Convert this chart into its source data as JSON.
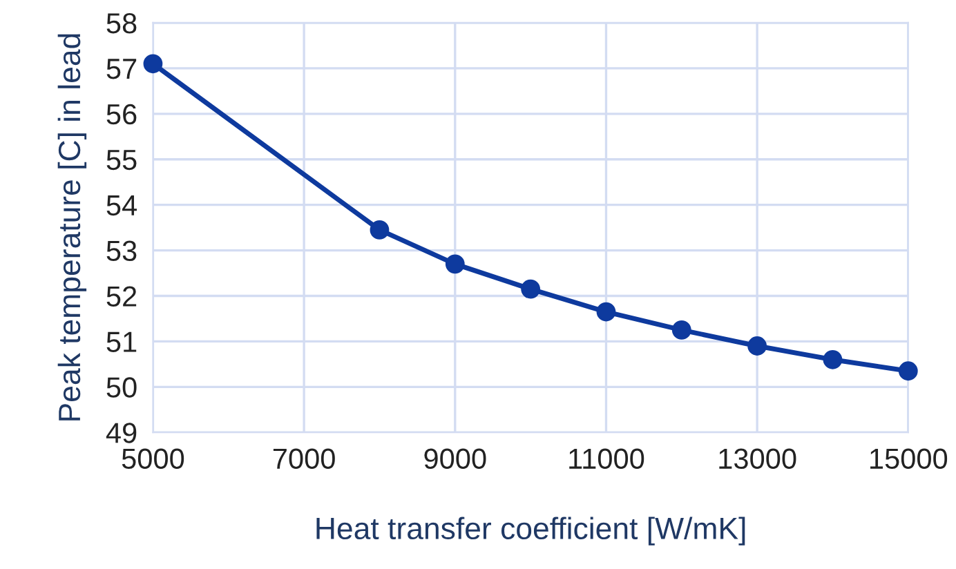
{
  "chart_data": {
    "type": "line",
    "xlabel": "Heat transfer coefficient [W/mK]",
    "ylabel": "Peak temperature [C] in lead",
    "x": [
      5000,
      8000,
      9000,
      10000,
      11000,
      12000,
      13000,
      14000,
      15000
    ],
    "series": [
      {
        "color": "#0e3a9e",
        "values": [
          57.1,
          53.45,
          52.7,
          52.15,
          51.65,
          51.25,
          50.9,
          50.6,
          50.35
        ]
      }
    ],
    "xlim": [
      5000,
      15000
    ],
    "xticks": [
      5000,
      7000,
      9000,
      11000,
      13000,
      15000
    ],
    "ylim": [
      49,
      58
    ],
    "yticks": [
      49,
      50,
      51,
      52,
      53,
      54,
      55,
      56,
      57,
      58
    ],
    "grid": true,
    "marker": "circle",
    "line_style": "solid"
  }
}
